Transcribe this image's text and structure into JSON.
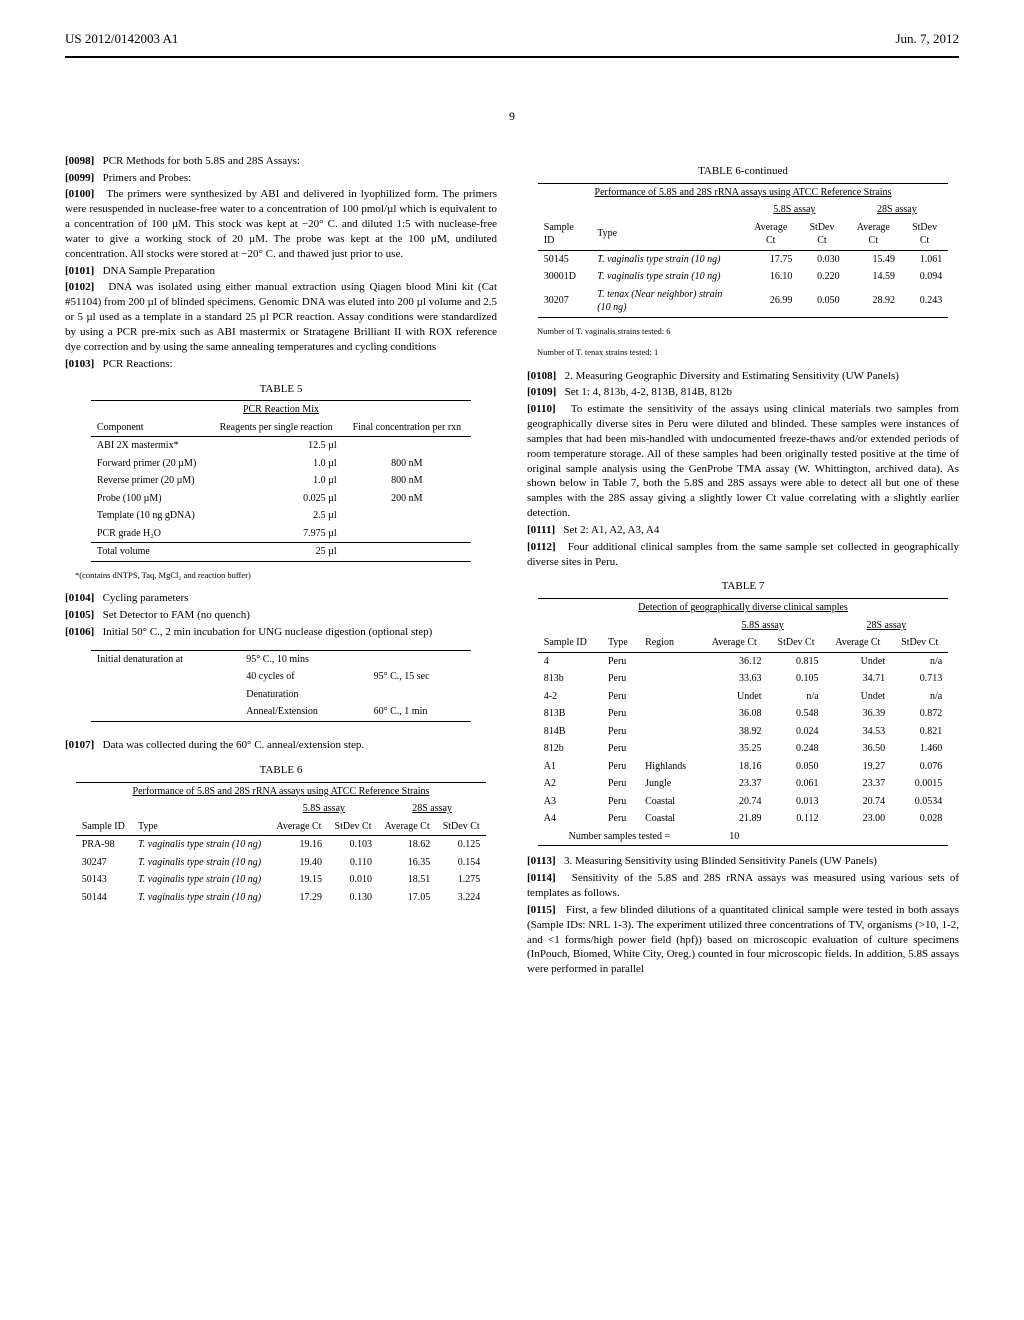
{
  "header": {
    "left": "US 2012/0142003 A1",
    "right": "Jun. 7, 2012"
  },
  "pageNumber": "9",
  "left": {
    "p0098": "PCR Methods for both 5.8S and 28S Assays:",
    "p0099": "Primers and Probes:",
    "p0100": "The primers were synthesized by ABI and delivered in lyophilized form. The primers were resuspended in nuclease-free water to a concentration of 100 pmol/µl which is equivalent to a concentration of 100 µM. This stock was kept at −20° C. and diluted 1:5 with nuclease-free water to give a working stock of 20 µM. The probe was kept at the 100 µM, undiluted concentration. All stocks were stored at −20° C. and thawed just prior to use.",
    "p0101": "DNA Sample Preparation",
    "p0102": "DNA was isolated using either manual extraction using Qiagen blood Mini kit (Cat #51104) from 200 µl of blinded specimens. Genomic DNA was eluted into 200 µl volume and 2.5 or 5 µl used as a template in a standard 25 µl PCR reaction. Assay conditions were standardized by using a PCR pre-mix such as ABI mastermix or Stratagene Brilliant II with ROX reference dye correction and by using the same annealing temperatures and cycling conditions",
    "p0103": "PCR Reactions:",
    "table5": {
      "caption": "TABLE 5",
      "subtitle": "PCR Reaction Mix",
      "headers": [
        "Component",
        "Reagents per single reaction",
        "Final concentration per rxn"
      ],
      "rows": [
        [
          "ABI 2X mastermix*",
          "12.5 µl",
          ""
        ],
        [
          "Forward primer (20 µM)",
          "1.0 µl",
          "800 nM"
        ],
        [
          "Reverse primer (20 µM)",
          "1.0 µl",
          "800 nM"
        ],
        [
          "Probe (100 µM)",
          "0.025 µl",
          "200 nM"
        ],
        [
          "Template (10 ng gDNA)",
          "2.5 µl",
          ""
        ],
        [
          "PCR grade H₂O",
          "7.975 µl",
          ""
        ]
      ],
      "totalRow": [
        "Total volume",
        "25 µl",
        ""
      ],
      "footnote": "*(contains dNTPS, Taq, MgCl₂ and reaction buffer)"
    },
    "p0104": "Cycling parameters",
    "p0105": "Set Detector to FAM (no quench)",
    "p0106": "Initial 50° C., 2 min incubation for UNG nuclease digestion (optional step)",
    "cycleTable": {
      "rows": [
        [
          "Initial denaturation at",
          "95° C., 10 mins",
          ""
        ],
        [
          "",
          "40 cycles of",
          "95° C., 15 sec"
        ],
        [
          "",
          "Denaturation",
          ""
        ],
        [
          "",
          "Anneal/Extension",
          "60° C., 1 min"
        ]
      ]
    },
    "p0107": "Data was collected during the 60° C. anneal/extension step.",
    "table6": {
      "caption": "TABLE 6",
      "subtitle": "Performance of 5.8S and 28S rRNA assays using ATCC Reference Strains",
      "groupHeaders": [
        "5.8S assay",
        "28S assay"
      ],
      "headers": [
        "Sample ID",
        "Type",
        "Average Ct",
        "StDev Ct",
        "Average Ct",
        "StDev Ct"
      ],
      "rows": [
        [
          "PRA-98",
          "T. vaginalis type strain (10 ng)",
          "19.16",
          "0.103",
          "18.62",
          "0.125"
        ],
        [
          "30247",
          "T. vaginalis type strain (10 ng)",
          "19.40",
          "0.110",
          "16.35",
          "0.154"
        ],
        [
          "50143",
          "T. vaginalis type strain (10 ng)",
          "19.15",
          "0.010",
          "18.51",
          "1.275"
        ],
        [
          "50144",
          "T. vaginalis type strain (10 ng)",
          "17.29",
          "0.130",
          "17.05",
          "3.224"
        ]
      ]
    }
  },
  "right": {
    "table6cont": {
      "caption": "TABLE 6-continued",
      "subtitle": "Performance of 5.8S and 28S rRNA assays using ATCC Reference Strains",
      "groupHeaders": [
        "5.8S assay",
        "28S assay"
      ],
      "headers": [
        "Sample ID",
        "Type",
        "Average Ct",
        "StDev Ct",
        "Average Ct",
        "StDev Ct"
      ],
      "rows": [
        [
          "50145",
          "T. vaginalis type strain (10 ng)",
          "17.75",
          "0.030",
          "15.49",
          "1.061"
        ],
        [
          "30001D",
          "T. vaginalis type strain (10 ng)",
          "16.10",
          "0.220",
          "14.59",
          "0.094"
        ],
        [
          "30207",
          "T. tenax (Near neighbor) strain (10 ng)",
          "26.99",
          "0.050",
          "28.92",
          "0.243"
        ]
      ],
      "footnote1": "Number of T. vaginalis strains tested: 6",
      "footnote2": "Number of T. tenax strains tested: 1"
    },
    "p0108": "2. Measuring Geographic Diversity and Estimating Sensitivity (UW Panels)",
    "p0109": "Set 1: 4, 813b, 4-2, 813B, 814B, 812b",
    "p0110": "To estimate the sensitivity of the assays using clinical materials two samples from geographically diverse sites in Peru were diluted and blinded. These samples were instances of samples that had been mis-handled with undocumented freeze-thaws and/or extended periods of room temperature storage. All of these samples had been originally tested positive at the time of original sample analysis using the GenProbe TMA assay (W. Whittington, archived data). As shown below in Table 7, both the 5.8S and 28S assays were able to detect all but one of these samples with the 28S assay giving a slightly lower Ct value correlating with a slightly earlier detection.",
    "p0111": "Set 2: A1, A2, A3, A4",
    "p0112": "Four additional clinical samples from the same sample set collected in geographically diverse sites in Peru.",
    "table7": {
      "caption": "TABLE 7",
      "subtitle": "Detection of geographically diverse clinical samples",
      "groupHeaders": [
        "5.8S assay",
        "28S assay"
      ],
      "headers": [
        "Sample ID",
        "Type",
        "Region",
        "Average Ct",
        "StDev Ct",
        "Average Ct",
        "StDev Ct"
      ],
      "rows": [
        [
          "4",
          "Peru",
          "",
          "36.12",
          "0.815",
          "Undet",
          "n/a"
        ],
        [
          "813b",
          "Peru",
          "",
          "33.63",
          "0.105",
          "34.71",
          "0.713"
        ],
        [
          "4-2",
          "Peru",
          "",
          "Undet",
          "n/a",
          "Undet",
          "n/a"
        ],
        [
          "813B",
          "Peru",
          "",
          "36.08",
          "0.548",
          "36.39",
          "0.872"
        ],
        [
          "814B",
          "Peru",
          "",
          "38.92",
          "0.024",
          "34.53",
          "0.821"
        ],
        [
          "812b",
          "Peru",
          "",
          "35.25",
          "0.248",
          "36.50",
          "1.460"
        ],
        [
          "A1",
          "Peru",
          "Highlands",
          "18.16",
          "0.050",
          "19.27",
          "0.076"
        ],
        [
          "A2",
          "Peru",
          "Jungle",
          "23.37",
          "0.061",
          "23.37",
          "0.0015"
        ],
        [
          "A3",
          "Peru",
          "Coastal",
          "20.74",
          "0.013",
          "20.74",
          "0.0534"
        ],
        [
          "A4",
          "Peru",
          "Coastal",
          "21.89",
          "0.112",
          "23.00",
          "0.028"
        ]
      ],
      "footerLabel": "Number samples tested =",
      "footerValue": "10"
    },
    "p0113": "3. Measuring Sensitivity using Blinded Sensitivity Panels (UW Panels)",
    "p0114": "Sensitivity of the 5.8S and 28S rRNA assays was measured using various sets of templates as follows.",
    "p0115": "First, a few blinded dilutions of a quantitated clinical sample were tested in both assays (Sample IDs: NRL 1-3). The experiment utilized three concentrations of TV, organisms (>10, 1-2, and <1 forms/high power field (hpf)) based on microscopic evaluation of culture specimens (InPouch, Biomed, White City, Oreg.) counted in four microscopic fields. In addition, 5.8S assays were performed in parallel"
  }
}
